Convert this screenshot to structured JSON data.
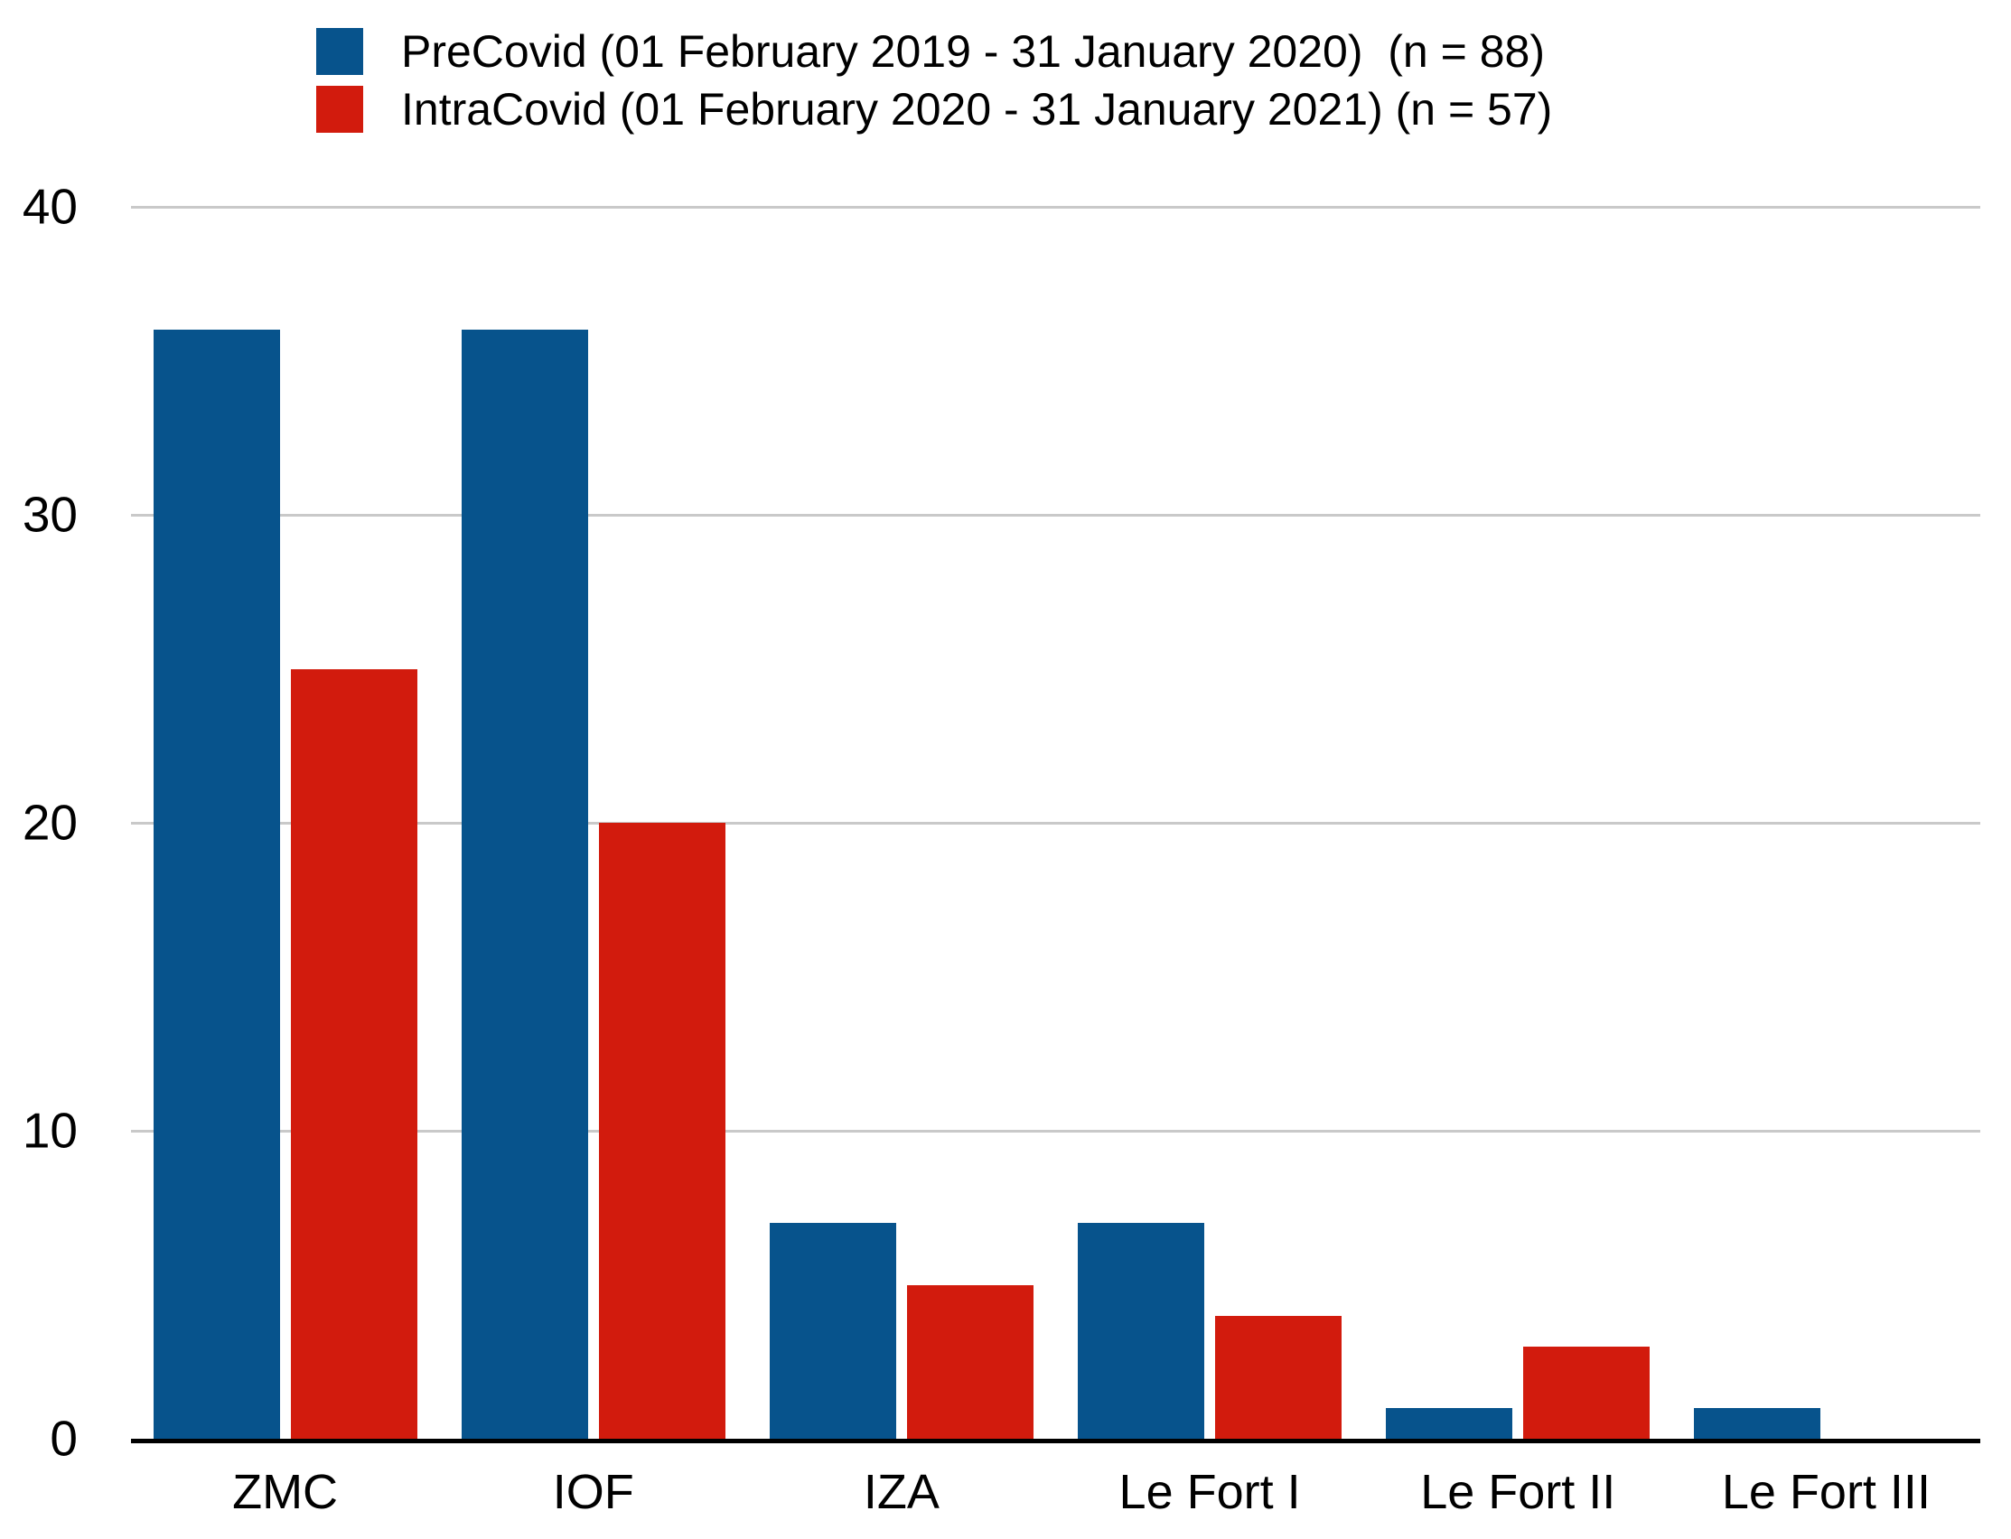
{
  "legend": {
    "items": [
      {
        "label": "PreCovid (01 February 2019 - 31 January 2020)  (n = 88)",
        "color": "#07538c"
      },
      {
        "label": "IntraCovid (01 February 2020 - 31 January 2021) (n = 57)",
        "color": "#d21b0d"
      }
    ]
  },
  "chart_data": {
    "type": "bar",
    "categories": [
      "ZMC",
      "IOF",
      "IZA",
      "Le Fort I",
      "Le Fort II",
      "Le Fort III"
    ],
    "series": [
      {
        "name": "PreCovid (01 February 2019 - 31 January 2020)",
        "n": 88,
        "color": "#07538c",
        "values": [
          36,
          36,
          7,
          7,
          1,
          1
        ]
      },
      {
        "name": "IntraCovid (01 February 2020 - 31 January 2021)",
        "n": 57,
        "color": "#d21b0d",
        "values": [
          25,
          20,
          5,
          4,
          3,
          0
        ]
      }
    ],
    "title": "",
    "xlabel": "",
    "ylabel": "",
    "ylim": [
      0,
      40
    ],
    "yticks": [
      0,
      10,
      20,
      30,
      40
    ],
    "grid": true,
    "legend_position": "top-left"
  },
  "colors": {
    "gridline": "#c9c9c9",
    "axis": "#000000",
    "text": "#000000",
    "background": "#ffffff"
  }
}
